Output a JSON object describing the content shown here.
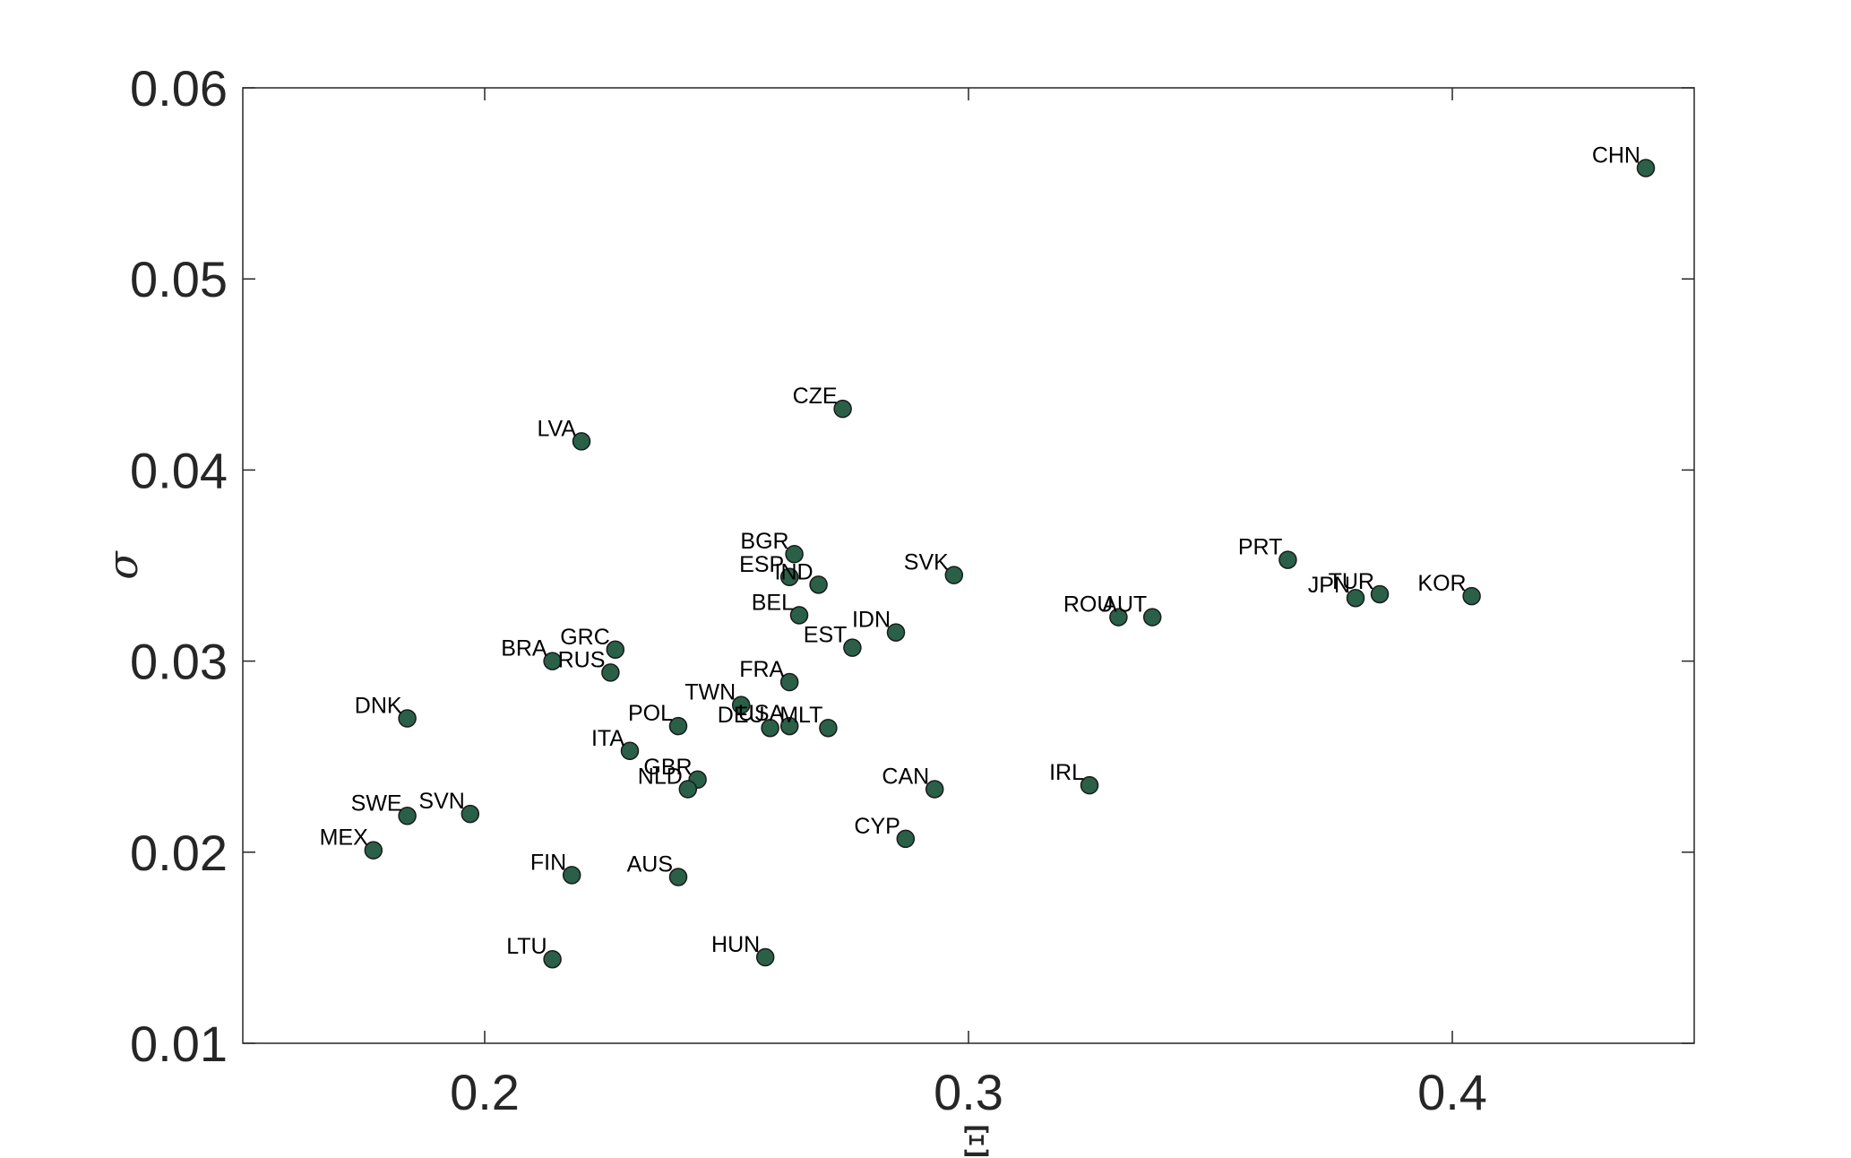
{
  "chart_data": {
    "type": "scatter",
    "title": "",
    "xlabel": "Ξ",
    "ylabel": "σ",
    "xlim": [
      0.15,
      0.45
    ],
    "ylim": [
      0.01,
      0.06
    ],
    "xticks": [
      0.2,
      0.3,
      0.4
    ],
    "xtick_labels": [
      "0.2",
      "0.3",
      "0.4"
    ],
    "yticks": [
      0.01,
      0.02,
      0.03,
      0.04,
      0.05,
      0.06
    ],
    "ytick_labels": [
      "0.01",
      "0.02",
      "0.03",
      "0.04",
      "0.05",
      "0.06"
    ],
    "grid": false,
    "marker_color": "#2a6048",
    "marker_edge_color": "#1a1a1a",
    "points": [
      {
        "label": "CHN",
        "x": 0.44,
        "y": 0.0558
      },
      {
        "label": "CZE",
        "x": 0.274,
        "y": 0.0432
      },
      {
        "label": "LVA",
        "x": 0.22,
        "y": 0.0415
      },
      {
        "label": "BGR",
        "x": 0.264,
        "y": 0.0356
      },
      {
        "label": "ESP",
        "x": 0.263,
        "y": 0.0344
      },
      {
        "label": "IND",
        "x": 0.269,
        "y": 0.034
      },
      {
        "label": "SVK",
        "x": 0.297,
        "y": 0.0345
      },
      {
        "label": "PRT",
        "x": 0.366,
        "y": 0.0353
      },
      {
        "label": "JPN",
        "x": 0.38,
        "y": 0.0333
      },
      {
        "label": "TUR",
        "x": 0.385,
        "y": 0.0335
      },
      {
        "label": "KOR",
        "x": 0.404,
        "y": 0.0334
      },
      {
        "label": "ROU",
        "x": 0.331,
        "y": 0.0323
      },
      {
        "label": "AUT",
        "x": 0.338,
        "y": 0.0323
      },
      {
        "label": "BEL",
        "x": 0.265,
        "y": 0.0324
      },
      {
        "label": "IDN",
        "x": 0.285,
        "y": 0.0315
      },
      {
        "label": "EST",
        "x": 0.276,
        "y": 0.0307
      },
      {
        "label": "GRC",
        "x": 0.227,
        "y": 0.0306
      },
      {
        "label": "BRA",
        "x": 0.214,
        "y": 0.03
      },
      {
        "label": "RUS",
        "x": 0.226,
        "y": 0.0294
      },
      {
        "label": "FRA",
        "x": 0.263,
        "y": 0.0289
      },
      {
        "label": "TWN",
        "x": 0.253,
        "y": 0.0277
      },
      {
        "label": "DEU",
        "x": 0.259,
        "y": 0.0265
      },
      {
        "label": "USA",
        "x": 0.263,
        "y": 0.0266
      },
      {
        "label": "MLT",
        "x": 0.271,
        "y": 0.0265
      },
      {
        "label": "POL",
        "x": 0.24,
        "y": 0.0266
      },
      {
        "label": "DNK",
        "x": 0.184,
        "y": 0.027
      },
      {
        "label": "ITA",
        "x": 0.23,
        "y": 0.0253
      },
      {
        "label": "GBR",
        "x": 0.244,
        "y": 0.0238
      },
      {
        "label": "NLD",
        "x": 0.242,
        "y": 0.0233
      },
      {
        "label": "CAN",
        "x": 0.293,
        "y": 0.0233
      },
      {
        "label": "IRL",
        "x": 0.325,
        "y": 0.0235
      },
      {
        "label": "SWE",
        "x": 0.184,
        "y": 0.0219
      },
      {
        "label": "SVN",
        "x": 0.197,
        "y": 0.022
      },
      {
        "label": "MEX",
        "x": 0.177,
        "y": 0.0201
      },
      {
        "label": "CYP",
        "x": 0.287,
        "y": 0.0207
      },
      {
        "label": "FIN",
        "x": 0.218,
        "y": 0.0188
      },
      {
        "label": "AUS",
        "x": 0.24,
        "y": 0.0187
      },
      {
        "label": "LTU",
        "x": 0.214,
        "y": 0.0144
      },
      {
        "label": "HUN",
        "x": 0.258,
        "y": 0.0145
      }
    ]
  }
}
